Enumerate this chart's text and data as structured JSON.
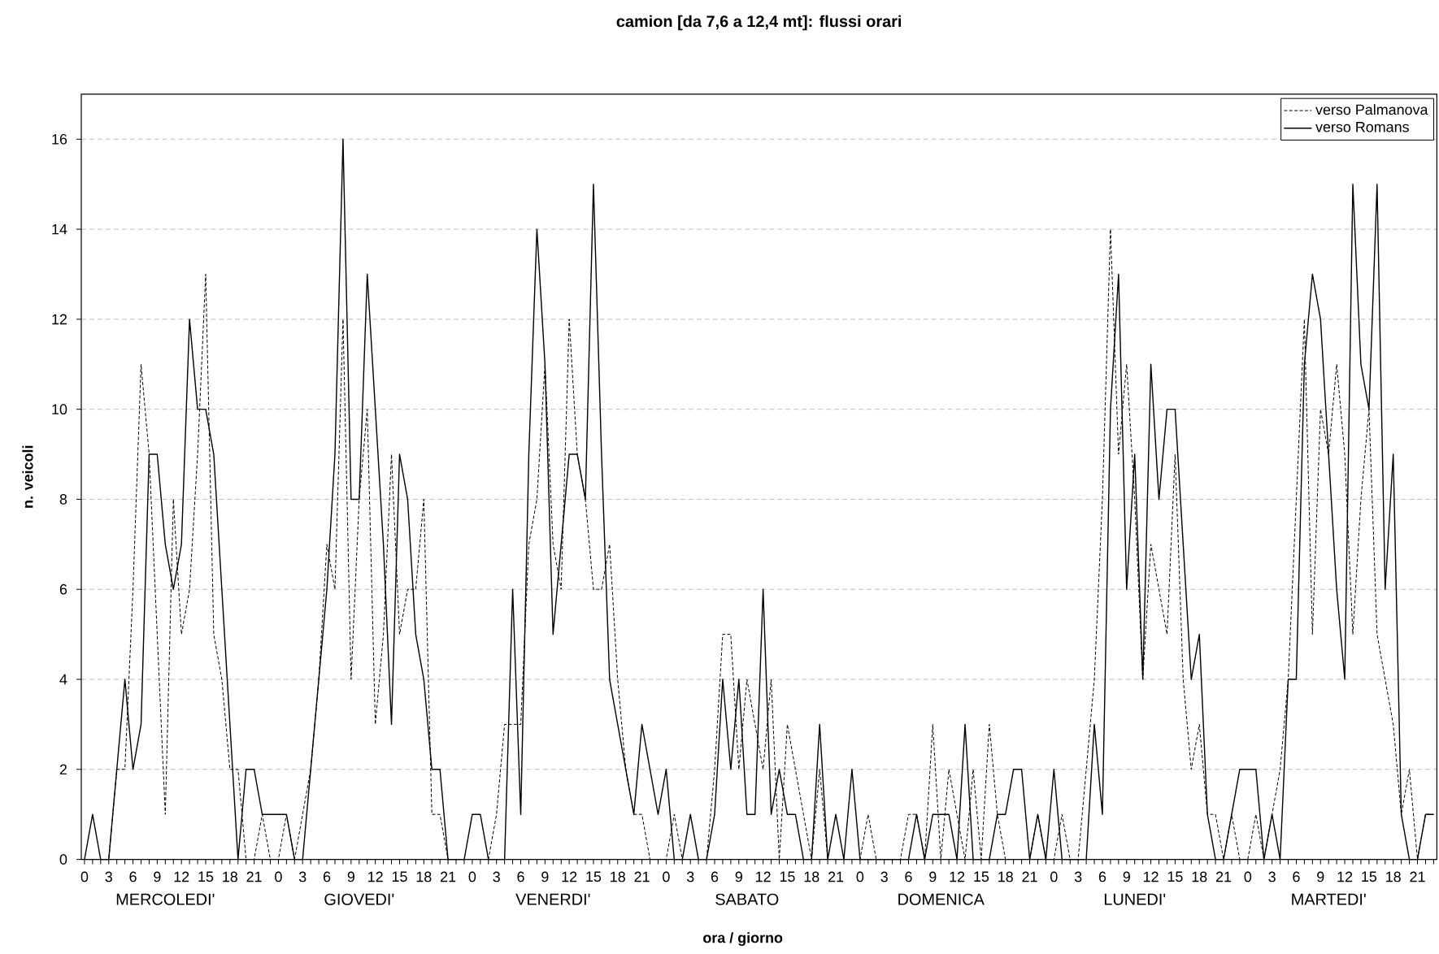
{
  "chart_data": {
    "type": "line",
    "title": "camion [da 7,6 a 12,4 mt]: flussi orari",
    "xlabel": "ora / giorno",
    "ylabel": "n. veicoli",
    "categories": [
      "0",
      null,
      null,
      "3",
      null,
      null,
      "6",
      null,
      null,
      "9",
      null,
      null,
      "12",
      null,
      null,
      "15",
      null,
      null,
      "18",
      null,
      null,
      "21",
      null,
      null,
      "0",
      null,
      null,
      "3",
      null,
      null,
      "6",
      null,
      null,
      "9",
      null,
      null,
      "12",
      null,
      null,
      "15",
      null,
      null,
      "18",
      null,
      null,
      "21",
      null,
      null,
      "0",
      null,
      null,
      "3",
      null,
      null,
      "6",
      null,
      null,
      "9",
      null,
      null,
      "12",
      null,
      null,
      "15",
      null,
      null,
      "18",
      null,
      null,
      "21",
      null,
      null,
      "0",
      null,
      null,
      "3",
      null,
      null,
      "6",
      null,
      null,
      "9",
      null,
      null,
      "12",
      null,
      null,
      "15",
      null,
      null,
      "18",
      null,
      null,
      "21",
      null,
      null,
      "0",
      null,
      null,
      "3",
      null,
      null,
      "6",
      null,
      null,
      "9",
      null,
      null,
      "12",
      null,
      null,
      "15",
      null,
      null,
      "18",
      null,
      null,
      "21",
      null,
      null,
      "0",
      null,
      null,
      "3",
      null,
      null,
      "6",
      null,
      null,
      "9",
      null,
      null,
      "12",
      null,
      null,
      "15",
      null,
      null,
      "18",
      null,
      null,
      "21",
      null,
      null,
      "0",
      null,
      null,
      "3",
      null,
      null,
      "6",
      null,
      null,
      "9",
      null,
      null,
      "12",
      null,
      null,
      "15",
      null,
      null,
      "18",
      null,
      null,
      "21",
      null,
      null
    ],
    "series": [
      {
        "name": "verso Palmanova",
        "color": "#000000",
        "line_style": "dashed",
        "values": [
          0,
          0,
          0,
          0,
          2,
          2,
          6,
          11,
          9,
          5,
          1,
          8,
          5,
          6,
          9,
          13,
          5,
          4,
          2,
          2,
          0,
          0,
          1,
          0,
          0,
          1,
          0,
          1,
          2,
          4,
          7,
          6,
          12,
          4,
          8,
          10,
          3,
          5,
          9,
          5,
          6,
          6,
          8,
          1,
          1,
          0,
          0,
          0,
          0,
          0,
          0,
          1,
          3,
          3,
          3,
          7,
          8,
          11,
          7,
          6,
          12,
          9,
          8,
          6,
          6,
          7,
          4,
          2,
          1,
          1,
          0,
          0,
          0,
          1,
          0,
          0,
          0,
          0,
          2,
          5,
          5,
          2,
          4,
          3,
          2,
          4,
          0,
          3,
          2,
          1,
          0,
          2,
          0,
          0,
          0,
          0,
          0,
          1,
          0,
          0,
          0,
          0,
          1,
          1,
          0,
          3,
          0,
          2,
          1,
          0,
          2,
          0,
          3,
          1,
          0,
          0,
          0,
          0,
          1,
          0,
          0,
          1,
          0,
          0,
          2,
          4,
          8,
          14,
          9,
          11,
          8,
          4,
          7,
          6,
          5,
          9,
          4,
          2,
          3,
          1,
          1,
          0,
          1,
          0,
          0,
          1,
          0,
          1,
          2,
          4,
          8,
          12,
          5,
          10,
          9,
          11,
          9,
          5,
          8,
          10,
          5,
          4,
          3,
          1,
          2,
          0,
          1,
          1
        ]
      },
      {
        "name": "verso Romans",
        "color": "#000000",
        "line_style": "solid",
        "values": [
          0,
          1,
          0,
          0,
          2,
          4,
          2,
          3,
          9,
          9,
          7,
          6,
          7,
          12,
          10,
          10,
          9,
          6,
          3,
          0,
          2,
          2,
          1,
          1,
          1,
          1,
          0,
          0,
          2,
          4,
          6,
          9,
          16,
          8,
          8,
          13,
          10,
          7,
          3,
          9,
          8,
          5,
          4,
          2,
          2,
          0,
          0,
          0,
          1,
          1,
          0,
          0,
          0,
          6,
          1,
          9,
          14,
          11,
          5,
          7,
          9,
          9,
          8,
          15,
          9,
          4,
          3,
          2,
          1,
          3,
          2,
          1,
          2,
          0,
          0,
          1,
          0,
          0,
          1,
          4,
          2,
          4,
          1,
          1,
          6,
          1,
          2,
          1,
          1,
          0,
          0,
          3,
          0,
          1,
          0,
          2,
          0,
          0,
          0,
          0,
          0,
          0,
          0,
          1,
          0,
          1,
          1,
          1,
          0,
          3,
          0,
          0,
          0,
          1,
          1,
          2,
          2,
          0,
          1,
          0,
          2,
          0,
          0,
          0,
          0,
          3,
          1,
          10,
          13,
          6,
          9,
          4,
          11,
          8,
          10,
          10,
          7,
          4,
          5,
          1,
          0,
          0,
          1,
          2,
          2,
          2,
          0,
          1,
          0,
          4,
          4,
          11,
          13,
          12,
          9,
          6,
          4,
          15,
          11,
          10,
          15,
          6,
          9,
          1,
          0,
          0,
          1,
          1
        ]
      }
    ],
    "annotations": [
      "MERCOLEDI'",
      "GIOVEDI'",
      "VENERDI'",
      "SABATO",
      "DOMENICA",
      "LUNEDI'",
      "MARTEDI'"
    ],
    "ylim": [
      0,
      17
    ],
    "yticks": [
      0,
      2,
      4,
      6,
      8,
      10,
      12,
      14,
      16
    ],
    "grid": "y",
    "legend": "top right",
    "marker": "none"
  }
}
